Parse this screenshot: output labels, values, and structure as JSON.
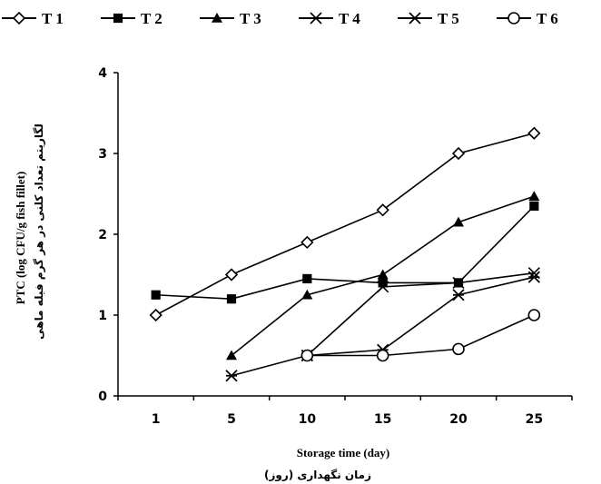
{
  "chart_data": {
    "type": "line",
    "title": "",
    "x": [
      1,
      5,
      10,
      15,
      20,
      25
    ],
    "xticks": [
      "1",
      "5",
      "10",
      "15",
      "20",
      "25"
    ],
    "xlabel": "Storage time (day)",
    "xlabel_fa": "زمان نگهداری (روز)",
    "ylabel": "PTC (log CFU/g fish fillet)",
    "ylabel_fa": "لگاریتم تعداد کلنی در هر گرم فیله ماهی",
    "ylim": [
      0,
      4
    ],
    "yticks": [
      "0",
      "1",
      "2",
      "3",
      "4"
    ],
    "grid": false,
    "legend_position": "top",
    "series": [
      {
        "name": "T 1",
        "marker": "diamond-open",
        "values": [
          1.0,
          1.5,
          1.9,
          2.3,
          3.0,
          3.25
        ]
      },
      {
        "name": "T 2",
        "marker": "square-filled",
        "values": [
          1.25,
          1.2,
          1.45,
          1.4,
          1.4,
          2.35
        ]
      },
      {
        "name": "T 3",
        "marker": "triangle-filled",
        "values": [
          null,
          0.5,
          1.25,
          1.5,
          2.15,
          2.47
        ]
      },
      {
        "name": "T 4",
        "marker": "x",
        "values": [
          null,
          null,
          0.5,
          1.35,
          1.4,
          1.52
        ]
      },
      {
        "name": "T 5",
        "marker": "star",
        "values": [
          null,
          0.25,
          0.5,
          0.57,
          1.25,
          1.47
        ]
      },
      {
        "name": "T 6",
        "marker": "circle-open",
        "values": [
          null,
          null,
          0.5,
          0.5,
          0.58,
          1.0
        ]
      }
    ]
  }
}
